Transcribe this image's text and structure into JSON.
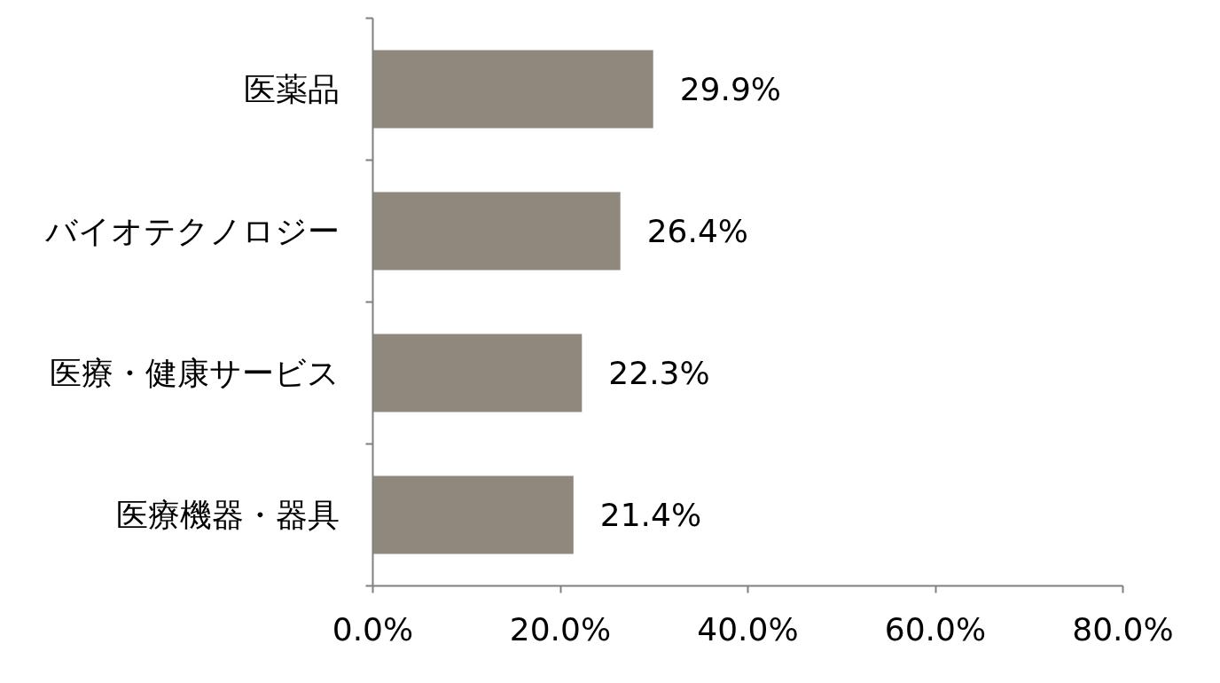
{
  "chart_data": {
    "type": "bar",
    "orientation": "horizontal",
    "categories": [
      "医薬品",
      "バイオテクノロジー",
      "医療・健康サービス",
      "医療機器・器具"
    ],
    "values": [
      29.9,
      26.4,
      22.3,
      21.4
    ],
    "value_labels": [
      "29.9%",
      "26.4%",
      "22.3%",
      "21.4%"
    ],
    "color": "#8f887c",
    "xlim": [
      0,
      80
    ],
    "xticks": [
      {
        "value": 0,
        "label": "0.0%"
      },
      {
        "value": 20,
        "label": "20.0%"
      },
      {
        "value": 40,
        "label": "40.0%"
      },
      {
        "value": 60,
        "label": "60.0%"
      },
      {
        "value": 80,
        "label": "80.0%"
      }
    ],
    "grid": false
  }
}
